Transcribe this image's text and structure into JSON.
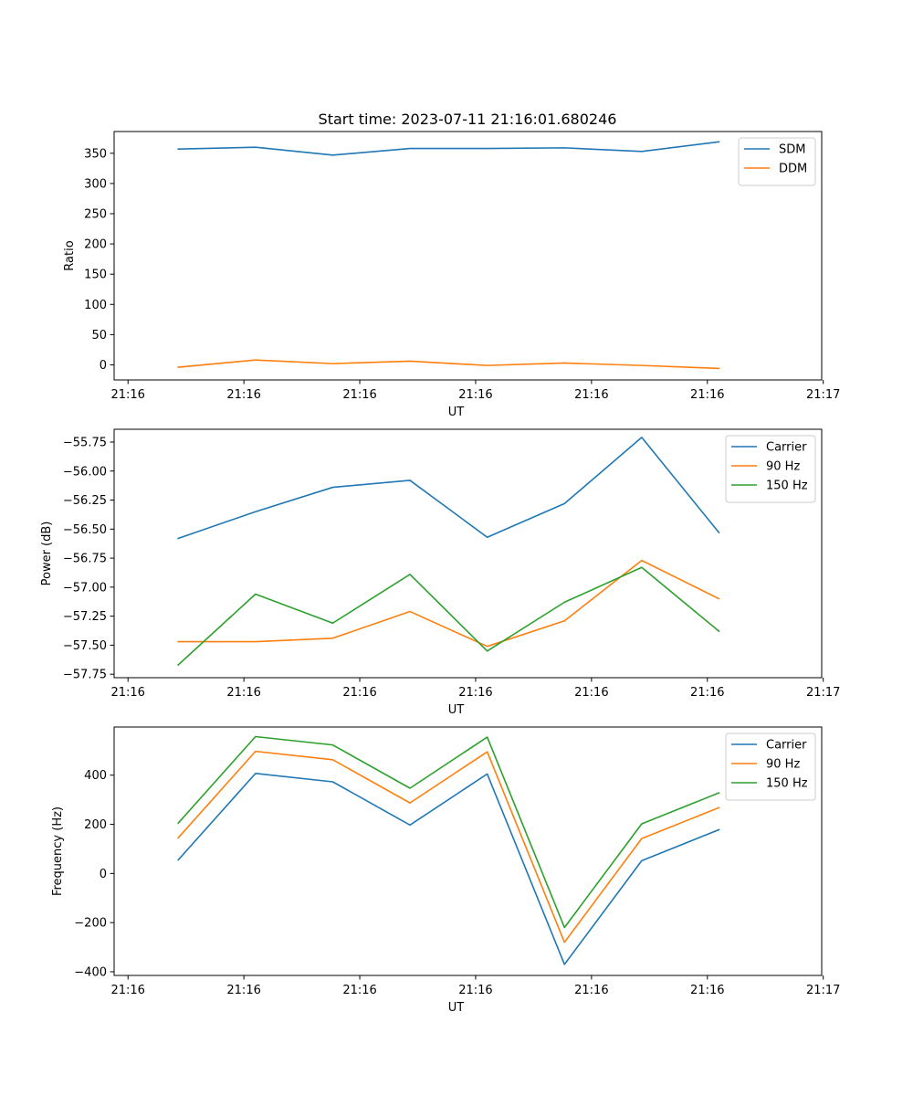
{
  "figure": {
    "title": "Start time: 2023-07-11 21:16:01.680246"
  },
  "colors": {
    "c0": "#1f77b4",
    "c1": "#ff7f0e",
    "c2": "#2ca02c"
  },
  "chart_data": [
    {
      "type": "line",
      "name": "ratio",
      "title": "Start time: 2023-07-11 21:16:01.680246",
      "xlabel": "UT",
      "ylabel": "Ratio",
      "x": [
        1,
        2,
        3,
        4,
        5,
        6,
        7,
        8
      ],
      "xlim": [
        0.17,
        9.33
      ],
      "xticks": [
        0.35,
        1.85,
        3.35,
        4.85,
        6.35,
        7.85,
        9.35
      ],
      "xtick_labels": [
        "21:16",
        "21:16",
        "21:16",
        "21:16",
        "21:16",
        "21:16",
        "21:17"
      ],
      "ylim": [
        -25,
        386
      ],
      "yticks": [
        0,
        50,
        100,
        150,
        200,
        250,
        300,
        350
      ],
      "ytick_labels": [
        "0",
        "50",
        "100",
        "150",
        "200",
        "250",
        "300",
        "350"
      ],
      "legend": "top-right",
      "series": [
        {
          "name": "SDM",
          "color": "#1f77b4",
          "values": [
            357,
            360,
            347,
            358,
            358,
            359,
            353,
            369
          ]
        },
        {
          "name": "DDM",
          "color": "#ff7f0e",
          "values": [
            -4,
            8,
            2,
            6,
            -1,
            3,
            -1,
            -6
          ]
        }
      ]
    },
    {
      "type": "line",
      "name": "power",
      "xlabel": "UT",
      "ylabel": "Power (dB)",
      "x": [
        1,
        2,
        3,
        4,
        5,
        6,
        7,
        8
      ],
      "xlim": [
        0.17,
        9.33
      ],
      "xticks": [
        0.35,
        1.85,
        3.35,
        4.85,
        6.35,
        7.85,
        9.35
      ],
      "xtick_labels": [
        "21:16",
        "21:16",
        "21:16",
        "21:16",
        "21:16",
        "21:16",
        "21:17"
      ],
      "ylim": [
        -57.78,
        -55.64
      ],
      "yticks": [
        -57.75,
        -57.5,
        -57.25,
        -57.0,
        -56.75,
        -56.5,
        -56.25,
        -56.0,
        -55.75
      ],
      "ytick_labels": [
        "−57.75",
        "−57.50",
        "−57.25",
        "−57.00",
        "−56.75",
        "−56.50",
        "−56.25",
        "−56.00",
        "−55.75"
      ],
      "legend": "top-right",
      "series": [
        {
          "name": "Carrier",
          "color": "#1f77b4",
          "values": [
            -56.58,
            -56.35,
            -56.14,
            -56.08,
            -56.57,
            -56.28,
            -55.71,
            -56.53
          ]
        },
        {
          "name": "90 Hz",
          "color": "#ff7f0e",
          "values": [
            -57.47,
            -57.47,
            -57.44,
            -57.21,
            -57.51,
            -57.29,
            -56.77,
            -57.1
          ]
        },
        {
          "name": "150 Hz",
          "color": "#2ca02c",
          "values": [
            -57.67,
            -57.06,
            -57.31,
            -56.89,
            -57.55,
            -57.13,
            -56.83,
            -57.38
          ]
        }
      ]
    },
    {
      "type": "line",
      "name": "frequency",
      "xlabel": "UT",
      "ylabel": "Frequency (Hz)",
      "x": [
        1,
        2,
        3,
        4,
        5,
        6,
        7,
        8
      ],
      "xlim": [
        0.17,
        9.33
      ],
      "xticks": [
        0.35,
        1.85,
        3.35,
        4.85,
        6.35,
        7.85,
        9.35
      ],
      "xtick_labels": [
        "21:16",
        "21:16",
        "21:16",
        "21:16",
        "21:16",
        "21:16",
        "21:17"
      ],
      "ylim": [
        -415,
        596
      ],
      "yticks": [
        -400,
        -200,
        0,
        200,
        400
      ],
      "ytick_labels": [
        "−400",
        "−200",
        "0",
        "200",
        "400"
      ],
      "legend": "top-right",
      "series": [
        {
          "name": "Carrier",
          "color": "#1f77b4",
          "values": [
            55,
            407,
            373,
            197,
            405,
            -370,
            52,
            178
          ]
        },
        {
          "name": "90 Hz",
          "color": "#ff7f0e",
          "values": [
            145,
            497,
            463,
            287,
            495,
            -280,
            142,
            268
          ]
        },
        {
          "name": "150 Hz",
          "color": "#2ca02c",
          "values": [
            205,
            557,
            523,
            347,
            555,
            -220,
            202,
            328
          ]
        }
      ]
    }
  ]
}
